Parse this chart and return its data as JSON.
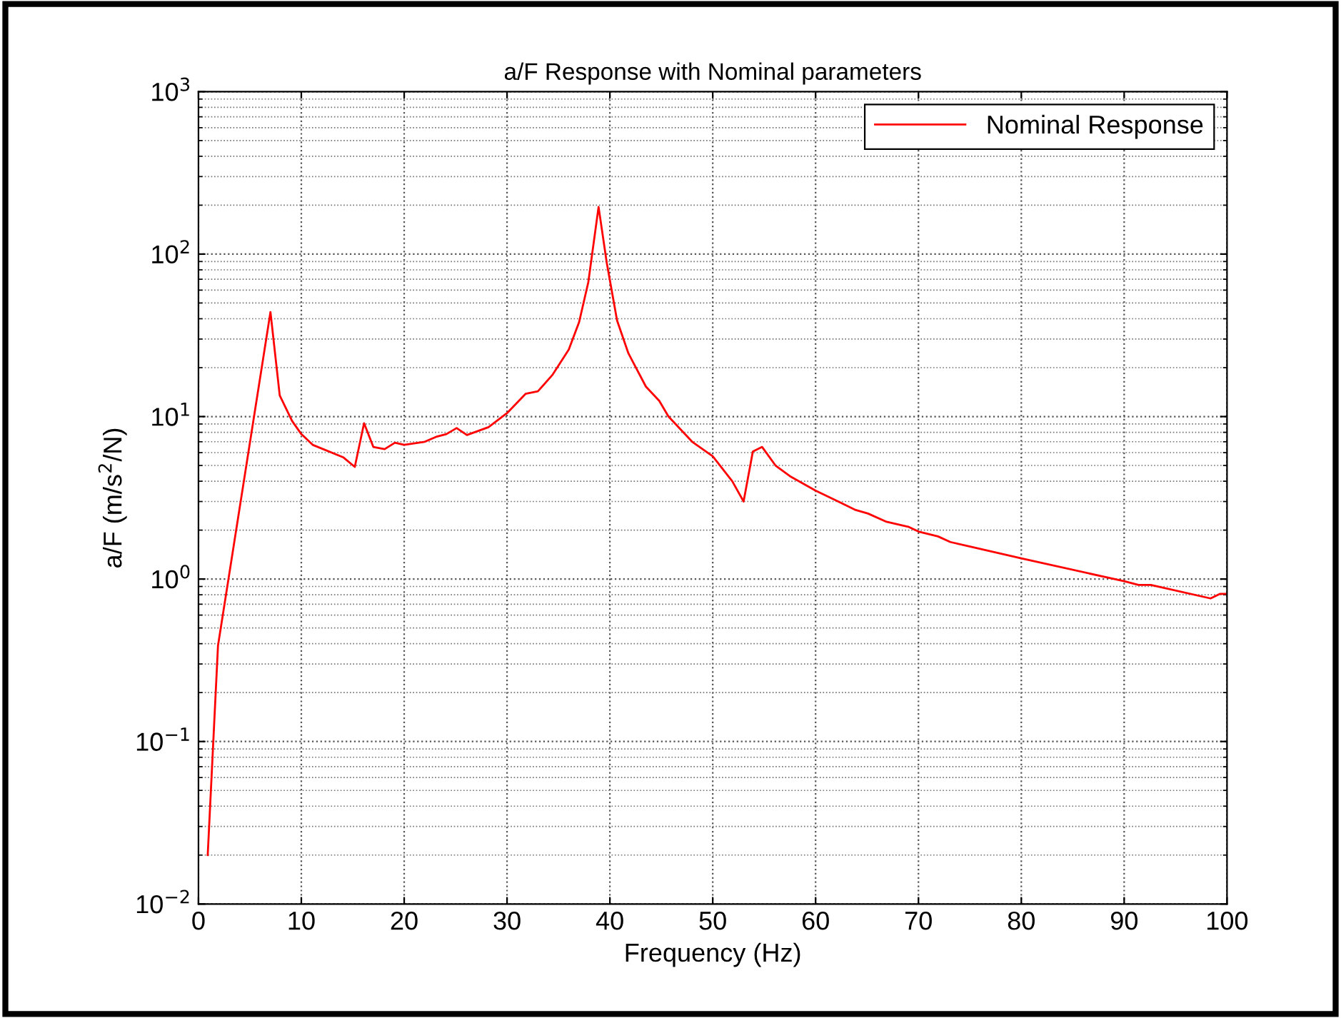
{
  "chart_data": {
    "type": "line",
    "title": "a/F Response with Nominal parameters",
    "xlabel": "Frequency (Hz)",
    "ylabel": "a/F (m/s$^{2}$/N)",
    "log": "y",
    "grid": true,
    "legend": "top right",
    "line_style": "solid",
    "marker": "none",
    "xlim": [
      0,
      100
    ],
    "xticks": [
      0,
      10,
      20,
      30,
      40,
      50,
      60,
      70,
      80,
      90,
      100
    ],
    "ylim": [
      0.01,
      1000
    ],
    "yticks": [
      {
        "value": 0.01,
        "label": "10$^{−2}$"
      },
      {
        "value": 0.1,
        "label": "10$^{−1}$"
      },
      {
        "value": 1,
        "label": "10$^{0}$"
      },
      {
        "value": 10,
        "label": "10$^{1}$"
      },
      {
        "value": 100,
        "label": "10$^{2}$"
      },
      {
        "value": 1000,
        "label": "10$^{3}$"
      }
    ],
    "series": [
      {
        "name": "Nominal Response",
        "color": "#ff0000",
        "x": [
          0.9,
          1.9,
          7.0,
          7.9,
          9.1,
          10,
          11.1,
          14.1,
          15.2,
          16.1,
          17,
          18.1,
          19.1,
          20,
          22,
          23.1,
          24.1,
          25.1,
          26.1,
          28.2,
          30,
          31.8,
          33,
          34.4,
          36,
          37,
          37.9,
          38.9,
          39.7,
          40.7,
          41.8,
          43.5,
          44.8,
          45.7,
          48,
          50,
          51.9,
          53,
          53.9,
          54.8,
          56.1,
          57.5,
          60,
          62.2,
          63.9,
          65.1,
          66.9,
          69,
          70,
          71.9,
          73.1,
          80,
          90,
          91.4,
          92.6,
          98.4,
          99.3,
          100
        ],
        "values": [
          0.02,
          0.39,
          44,
          13.5,
          9.4,
          7.8,
          6.7,
          5.6,
          4.9,
          9.1,
          6.5,
          6.3,
          6.9,
          6.7,
          7.0,
          7.5,
          7.8,
          8.5,
          7.7,
          8.6,
          10.5,
          13.8,
          14.3,
          18,
          25.8,
          38,
          67,
          195,
          88,
          39,
          24.5,
          15.3,
          12.5,
          10,
          7.0,
          5.7,
          4.0,
          3.0,
          6.1,
          6.5,
          5.0,
          4.3,
          3.5,
          3.0,
          2.66,
          2.53,
          2.25,
          2.1,
          1.96,
          1.83,
          1.69,
          1.34,
          0.97,
          0.92,
          0.92,
          0.76,
          0.81,
          0.81
        ]
      }
    ]
  }
}
